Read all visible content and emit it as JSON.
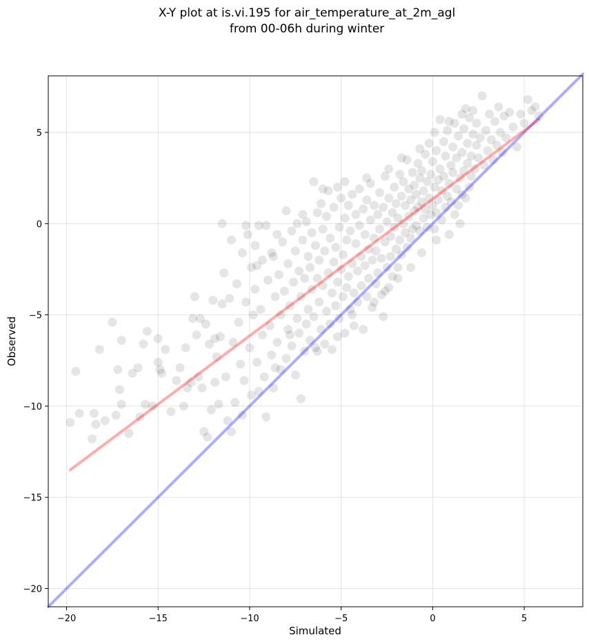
{
  "chart_data": {
    "type": "scatter",
    "title_lines": [
      "X-Y plot at is.vi.195 for air_temperature_at_2m_agl",
      "from 00-06h during winter"
    ],
    "xlabel": "Simulated",
    "ylabel": "Observed",
    "xlim": [
      -21.0,
      8.2
    ],
    "ylim": [
      -21.0,
      8.1
    ],
    "x_ticks": [
      -20,
      -15,
      -10,
      -5,
      0,
      5
    ],
    "y_ticks": [
      -20,
      -15,
      -10,
      -5,
      0,
      5
    ],
    "x_tick_labels": [
      "−20",
      "−15",
      "−10",
      "−5",
      "0",
      "5"
    ],
    "y_tick_labels": [
      "−20",
      "−15",
      "−10",
      "−5",
      "0",
      "5"
    ],
    "grid": true,
    "colors": {
      "points": "#000000",
      "one_to_one_line": "#0000ff",
      "fit_line": "#ff0000"
    },
    "lines": [
      {
        "role": "one-to-one",
        "x": [
          -21.0,
          8.2
        ],
        "y": [
          -21.0,
          8.2
        ]
      },
      {
        "role": "regression-fit",
        "x": [
          -19.8,
          5.8
        ],
        "y": [
          -13.5,
          5.7
        ]
      }
    ],
    "points": [
      [
        -19.8,
        -10.9
      ],
      [
        -19.5,
        -8.1
      ],
      [
        -19.3,
        -10.4
      ],
      [
        -18.6,
        -11.8
      ],
      [
        -18.5,
        -10.4
      ],
      [
        -18.4,
        -11.0
      ],
      [
        -18.2,
        -6.9
      ],
      [
        -17.9,
        -10.8
      ],
      [
        -17.5,
        -5.4
      ],
      [
        -17.3,
        -10.5
      ],
      [
        -17.2,
        -8.0
      ],
      [
        -17.1,
        -9.1
      ],
      [
        -17.0,
        -6.4
      ],
      [
        -17.0,
        -9.9
      ],
      [
        -16.6,
        -11.5
      ],
      [
        -16.4,
        -8.2
      ],
      [
        -16.1,
        -7.9
      ],
      [
        -16.0,
        -10.6
      ],
      [
        -15.8,
        -6.6
      ],
      [
        -15.7,
        -9.9
      ],
      [
        -15.6,
        -5.9
      ],
      [
        -15.3,
        -10.0
      ],
      [
        -15.0,
        -6.3
      ],
      [
        -15.0,
        -7.6
      ],
      [
        -14.9,
        -8.0
      ],
      [
        -14.8,
        -8.2
      ],
      [
        -14.6,
        -6.9
      ],
      [
        -14.3,
        -10.3
      ],
      [
        -14.0,
        -8.6
      ],
      [
        -13.8,
        -7.9
      ],
      [
        -13.6,
        -10.0
      ],
      [
        -13.5,
        -6.8
      ],
      [
        -13.4,
        -9.0
      ],
      [
        -13.2,
        -8.7
      ],
      [
        -13.1,
        -5.2
      ],
      [
        -13.0,
        -4.0
      ],
      [
        -12.9,
        -6.1
      ],
      [
        -12.8,
        -8.4
      ],
      [
        -12.6,
        -9.0
      ],
      [
        -12.5,
        -11.4
      ],
      [
        -12.4,
        -5.5
      ],
      [
        -12.3,
        -11.7
      ],
      [
        -12.2,
        -6.6
      ],
      [
        -12.1,
        -10.2
      ],
      [
        -12.0,
        -4.2
      ],
      [
        -11.9,
        -8.7
      ],
      [
        -11.8,
        -7.3
      ],
      [
        -11.7,
        -9.9
      ],
      [
        -11.6,
        -6.2
      ],
      [
        -11.5,
        -4.4
      ],
      [
        -11.4,
        -2.7
      ],
      [
        -11.3,
        -8.4
      ],
      [
        -11.2,
        -10.8
      ],
      [
        -11.1,
        -4.1
      ],
      [
        -11.0,
        -11.4
      ],
      [
        -11.0,
        -0.9
      ],
      [
        -10.9,
        -6.5
      ],
      [
        -10.8,
        -9.8
      ],
      [
        -10.7,
        -3.3
      ],
      [
        -10.6,
        -5.4
      ],
      [
        -10.5,
        -7.7
      ],
      [
        -10.4,
        -10.5
      ],
      [
        -10.4,
        -1.6
      ],
      [
        -10.3,
        -8.6
      ],
      [
        -10.2,
        -4.3
      ],
      [
        -10.1,
        -0.6
      ],
      [
        -10.0,
        -6.8
      ],
      [
        -9.9,
        -2.4
      ],
      [
        -9.9,
        -9.4
      ],
      [
        -9.8,
        -5.0
      ],
      [
        -9.7,
        -3.6
      ],
      [
        -9.7,
        -1.2
      ],
      [
        -9.6,
        -7.6
      ],
      [
        -9.5,
        -0.1
      ],
      [
        -9.5,
        -9.2
      ],
      [
        -9.4,
        -4.7
      ],
      [
        -9.3,
        -2.0
      ],
      [
        -9.3,
        -6.1
      ],
      [
        -9.2,
        -8.4
      ],
      [
        -9.1,
        -0.1
      ],
      [
        -9.1,
        -10.6
      ],
      [
        -9.0,
        -3.1
      ],
      [
        -8.9,
        -5.6
      ],
      [
        -8.8,
        -7.2
      ],
      [
        -8.8,
        -1.6
      ],
      [
        -8.7,
        -9.0
      ],
      [
        -8.6,
        -4.0
      ],
      [
        -8.5,
        -0.6
      ],
      [
        -8.5,
        -6.5
      ],
      [
        -8.4,
        -2.8
      ],
      [
        -8.3,
        -8.0
      ],
      [
        -8.3,
        -5.0
      ],
      [
        -8.2,
        -1.0
      ],
      [
        -8.1,
        -3.7
      ],
      [
        -8.0,
        -7.4
      ],
      [
        -8.0,
        0.7
      ],
      [
        -7.9,
        -5.8
      ],
      [
        -7.9,
        -2.2
      ],
      [
        -7.8,
        -4.5
      ],
      [
        -7.7,
        -0.4
      ],
      [
        -7.7,
        -6.7
      ],
      [
        -7.6,
        -3.2
      ],
      [
        -7.5,
        -8.3
      ],
      [
        -7.5,
        -1.5
      ],
      [
        -7.4,
        -5.2
      ],
      [
        -7.4,
        0.0
      ],
      [
        -7.3,
        -2.6
      ],
      [
        -7.3,
        -6.0
      ],
      [
        -7.2,
        -9.6
      ],
      [
        -7.2,
        -4.0
      ],
      [
        -7.1,
        -0.9
      ],
      [
        -7.0,
        -7.0
      ],
      [
        -7.0,
        -3.0
      ],
      [
        -6.9,
        -5.5
      ],
      [
        -6.9,
        0.1
      ],
      [
        -6.8,
        -1.8
      ],
      [
        -6.8,
        -4.7
      ],
      [
        -6.7,
        -6.4
      ],
      [
        -6.7,
        -2.4
      ],
      [
        -6.6,
        -0.5
      ],
      [
        -6.6,
        -3.6
      ],
      [
        -6.5,
        -5.1
      ],
      [
        -6.5,
        2.3
      ],
      [
        -6.4,
        -1.2
      ],
      [
        -6.4,
        -6.8
      ],
      [
        -6.3,
        -3.0
      ],
      [
        -6.3,
        0.6
      ],
      [
        -6.2,
        -4.3
      ],
      [
        -6.2,
        -2.0
      ],
      [
        -6.1,
        -5.8
      ],
      [
        -6.1,
        1.1
      ],
      [
        -6.0,
        -0.3
      ],
      [
        -6.0,
        -3.4
      ],
      [
        -5.9,
        -6.6
      ],
      [
        -5.9,
        -1.5
      ],
      [
        -5.8,
        -4.8
      ],
      [
        -5.8,
        0.4
      ],
      [
        -5.7,
        -2.7
      ],
      [
        -5.7,
        1.8
      ],
      [
        -5.6,
        -5.5
      ],
      [
        -5.6,
        -0.8
      ],
      [
        -5.5,
        -3.8
      ],
      [
        -5.5,
        -6.9
      ],
      [
        -5.4,
        -2.1
      ],
      [
        -5.4,
        0.9
      ],
      [
        -5.3,
        -4.5
      ],
      [
        -5.3,
        -1.3
      ],
      [
        -5.2,
        2.0
      ],
      [
        -5.2,
        -3.2
      ],
      [
        -5.1,
        -5.2
      ],
      [
        -5.1,
        -0.2
      ],
      [
        -5.0,
        -2.5
      ],
      [
        -5.0,
        1.4
      ],
      [
        -4.9,
        -4.0
      ],
      [
        -4.9,
        -1.7
      ],
      [
        -4.8,
        -6.0
      ],
      [
        -4.8,
        0.3
      ],
      [
        -4.7,
        -3.5
      ],
      [
        -4.7,
        -0.9
      ],
      [
        -4.6,
        1.0
      ],
      [
        -4.6,
        -2.9
      ],
      [
        -4.5,
        -4.7
      ],
      [
        -4.5,
        -0.4
      ],
      [
        -4.4,
        -2.2
      ],
      [
        -4.4,
        1.6
      ],
      [
        -4.3,
        -3.8
      ],
      [
        -4.3,
        -5.6
      ],
      [
        -4.2,
        -1.1
      ],
      [
        -4.2,
        0.5
      ],
      [
        -4.1,
        -2.6
      ],
      [
        -4.1,
        -4.3
      ],
      [
        -4.0,
        -0.1
      ],
      [
        -4.0,
        1.9
      ],
      [
        -3.9,
        -1.8
      ],
      [
        -3.9,
        -3.4
      ],
      [
        -3.8,
        -5.8
      ],
      [
        -3.8,
        0.8
      ],
      [
        -3.7,
        -2.3
      ],
      [
        -3.7,
        -0.6
      ],
      [
        -3.6,
        -4.0
      ],
      [
        -3.6,
        1.3
      ],
      [
        -3.5,
        -1.4
      ],
      [
        -3.5,
        -3.0
      ],
      [
        -3.4,
        0.2
      ],
      [
        -3.4,
        2.2
      ],
      [
        -3.3,
        -2.0
      ],
      [
        -3.3,
        -4.6
      ],
      [
        -3.2,
        -0.8
      ],
      [
        -3.2,
        1.0
      ],
      [
        -3.1,
        -3.3
      ],
      [
        -3.1,
        -1.5
      ],
      [
        -3.0,
        0.5
      ],
      [
        -3.0,
        -2.7
      ],
      [
        -2.9,
        1.7
      ],
      [
        -2.9,
        -0.3
      ],
      [
        -2.8,
        -3.9
      ],
      [
        -2.8,
        -1.9
      ],
      [
        -2.7,
        0.9
      ],
      [
        -2.7,
        -5.1
      ],
      [
        -2.6,
        -1.0
      ],
      [
        -2.6,
        2.6
      ],
      [
        -2.5,
        -2.4
      ],
      [
        -2.5,
        0.1
      ],
      [
        -2.4,
        -3.5
      ],
      [
        -2.4,
        1.4
      ],
      [
        -2.3,
        -0.7
      ],
      [
        -2.3,
        -1.8
      ],
      [
        -2.2,
        0.6
      ],
      [
        -2.2,
        -2.9
      ],
      [
        -2.1,
        2.0
      ],
      [
        -2.1,
        -0.2
      ],
      [
        -2.0,
        -1.4
      ],
      [
        -2.0,
        1.1
      ],
      [
        -1.9,
        -2.4
      ],
      [
        -1.9,
        0.3
      ],
      [
        -1.8,
        2.7
      ],
      [
        -1.8,
        -0.9
      ],
      [
        -1.7,
        1.5
      ],
      [
        -1.7,
        -1.7
      ],
      [
        -1.6,
        0.0
      ],
      [
        -1.6,
        2.3
      ],
      [
        -1.5,
        -0.5
      ],
      [
        -1.5,
        1.0
      ],
      [
        -1.4,
        -1.3
      ],
      [
        -1.4,
        3.5
      ],
      [
        -1.3,
        0.4
      ],
      [
        -1.3,
        1.9
      ],
      [
        -1.2,
        -0.8
      ],
      [
        -1.2,
        1.3
      ],
      [
        -1.1,
        2.8
      ],
      [
        -1.1,
        -0.3
      ],
      [
        -1.0,
        0.7
      ],
      [
        -1.0,
        2.1
      ],
      [
        -0.9,
        -0.1
      ],
      [
        -0.9,
        1.6
      ],
      [
        -0.8,
        3.3
      ],
      [
        -0.8,
        0.9
      ],
      [
        -0.7,
        2.5
      ],
      [
        -0.7,
        -0.4
      ],
      [
        -0.6,
        1.2
      ],
      [
        -0.6,
        2.9
      ],
      [
        -0.5,
        0.3
      ],
      [
        -0.5,
        1.8
      ],
      [
        -0.4,
        3.8
      ],
      [
        -0.4,
        0.8
      ],
      [
        -0.3,
        2.3
      ],
      [
        -0.3,
        -0.2
      ],
      [
        -0.2,
        1.4
      ],
      [
        -0.2,
        4.4
      ],
      [
        -0.1,
        0.5
      ],
      [
        -0.1,
        2.7
      ],
      [
        0.0,
        1.0
      ],
      [
        0.0,
        3.4
      ],
      [
        0.1,
        -0.3
      ],
      [
        0.1,
        2.0
      ],
      [
        0.2,
        4.0
      ],
      [
        0.2,
        0.6
      ],
      [
        0.3,
        2.4
      ],
      [
        0.3,
        1.3
      ],
      [
        0.4,
        5.7
      ],
      [
        0.4,
        3.0
      ],
      [
        0.5,
        0.2
      ],
      [
        0.5,
        1.8
      ],
      [
        0.6,
        4.5
      ],
      [
        0.6,
        2.6
      ],
      [
        0.7,
        0.9
      ],
      [
        0.7,
        3.7
      ],
      [
        0.8,
        1.5
      ],
      [
        0.8,
        5.1
      ],
      [
        0.9,
        2.2
      ],
      [
        0.9,
        -0.6
      ],
      [
        1.0,
        3.2
      ],
      [
        1.0,
        1.2
      ],
      [
        1.1,
        4.2
      ],
      [
        1.1,
        2.8
      ],
      [
        1.2,
        0.5
      ],
      [
        1.2,
        5.5
      ],
      [
        1.3,
        1.9
      ],
      [
        1.3,
        3.6
      ],
      [
        1.4,
        1.0
      ],
      [
        1.4,
        4.8
      ],
      [
        1.5,
        2.5
      ],
      [
        1.5,
        0.0
      ],
      [
        1.6,
        3.9
      ],
      [
        1.6,
        1.6
      ],
      [
        1.7,
        5.2
      ],
      [
        1.7,
        2.9
      ],
      [
        1.8,
        6.3
      ],
      [
        1.8,
        1.4
      ],
      [
        1.9,
        4.4
      ],
      [
        1.9,
        3.3
      ],
      [
        2.0,
        2.0
      ],
      [
        2.0,
        5.8
      ],
      [
        2.1,
        3.7
      ],
      [
        2.1,
        2.6
      ],
      [
        2.2,
        4.9
      ],
      [
        2.2,
        6.2
      ],
      [
        2.3,
        3.0
      ],
      [
        2.4,
        4.3
      ],
      [
        2.4,
        5.5
      ],
      [
        2.5,
        3.6
      ],
      [
        2.6,
        4.7
      ],
      [
        2.7,
        7.0
      ],
      [
        2.8,
        3.2
      ],
      [
        2.9,
        5.1
      ],
      [
        3.0,
        4.0
      ],
      [
        3.1,
        6.0
      ],
      [
        3.2,
        4.6
      ],
      [
        3.3,
        3.5
      ],
      [
        3.4,
        5.6
      ],
      [
        3.5,
        4.3
      ],
      [
        3.6,
        6.4
      ],
      [
        3.7,
        5.0
      ],
      [
        3.8,
        3.9
      ],
      [
        3.9,
        5.9
      ],
      [
        4.0,
        4.7
      ],
      [
        4.2,
        6.1
      ],
      [
        4.4,
        5.3
      ],
      [
        4.6,
        4.2
      ],
      [
        4.8,
        6.0
      ],
      [
        5.0,
        5.5
      ],
      [
        5.2,
        6.8
      ],
      [
        5.4,
        6.2
      ],
      [
        5.6,
        6.4
      ],
      [
        5.8,
        5.9
      ],
      [
        -8.6,
        -7.9
      ],
      [
        -7.8,
        -6.1
      ],
      [
        -6.3,
        -7.0
      ],
      [
        -5.2,
        -6.2
      ],
      [
        -4.4,
        -5.0
      ],
      [
        -3.2,
        -4.3
      ],
      [
        -2.6,
        -3.7
      ],
      [
        -1.9,
        -3.0
      ],
      [
        -1.2,
        -2.4
      ],
      [
        -0.6,
        -1.6
      ],
      [
        0.2,
        -0.9
      ],
      [
        -11.9,
        -6.3
      ],
      [
        -12.7,
        -5.2
      ],
      [
        -10.2,
        -0.1
      ],
      [
        -11.5,
        0.0
      ],
      [
        -9.6,
        -2.3
      ],
      [
        -8.7,
        -1.8
      ],
      [
        -7.1,
        0.5
      ],
      [
        -6.0,
        1.9
      ],
      [
        -4.8,
        2.3
      ],
      [
        -3.6,
        2.5
      ],
      [
        -2.4,
        3.0
      ],
      [
        -1.7,
        3.6
      ],
      [
        -0.7,
        4.1
      ],
      [
        0.1,
        5.0
      ],
      [
        0.9,
        5.6
      ],
      [
        1.6,
        6.0
      ]
    ]
  }
}
